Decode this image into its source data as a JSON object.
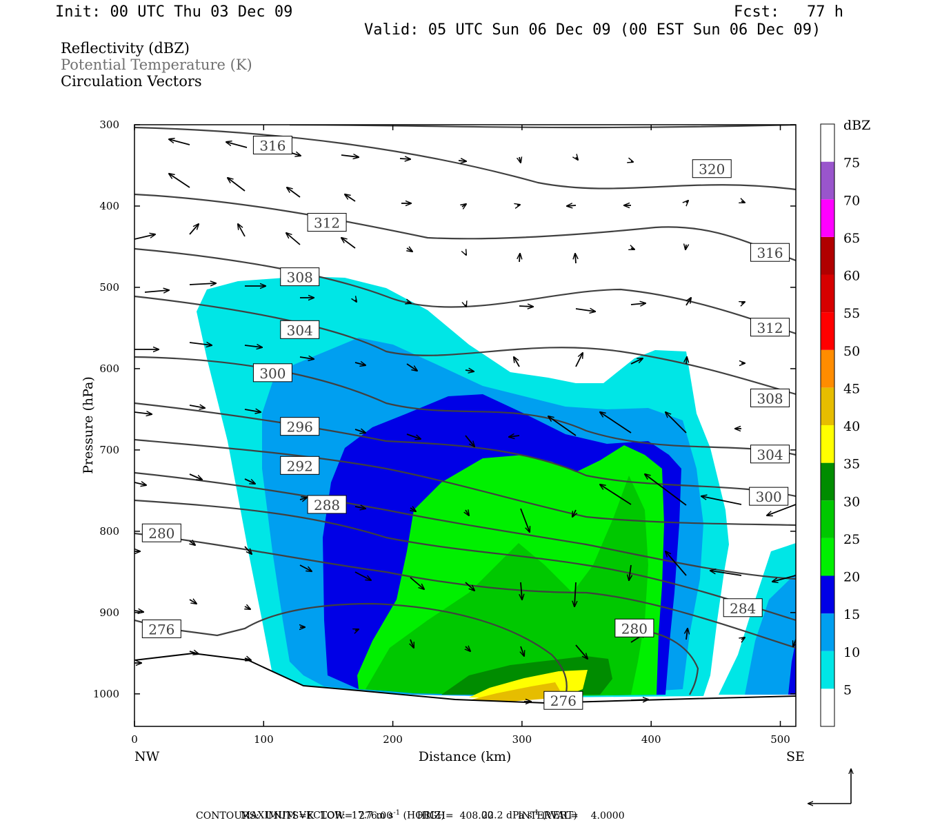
{
  "header": {
    "init": "Init: 00 UTC Thu 03 Dec 09",
    "fcst": "Fcst:   77 h",
    "valid": "Valid: 05 UTC Sun 06 Dec 09 (00 EST Sun 06 Dec 09)"
  },
  "fields": [
    {
      "label": "Reflectivity (dBZ)",
      "color": "#000000"
    },
    {
      "label": "Potential Temperature (K)",
      "color": "#707070"
    },
    {
      "label": "Circulation Vectors",
      "color": "#000000"
    }
  ],
  "footer": {
    "line1_a": "MAXIMUM VECTOR:  17.7 m s",
    "line1_b": "(HORIZ)",
    "line1_c": "22.2 dPa s",
    "line1_d": "(VERT)",
    "sup": "-1",
    "line2": "CONTOURS:  UNITS=K  LOW=  276.00        HIGH=  408.00        INTERVAL=    4.0000"
  },
  "chart_data": {
    "type": "cross-section",
    "xlabel": "Distance (km)",
    "ylabel": "Pressure (hPa)",
    "xlim": [
      0,
      512
    ],
    "ylim": [
      1040,
      300
    ],
    "x_ticks": [
      0,
      100,
      200,
      300,
      400,
      500
    ],
    "y_ticks": [
      300,
      400,
      500,
      600,
      700,
      800,
      900,
      1000
    ],
    "end_labels": {
      "left": "NW",
      "right": "SE"
    },
    "colorbar": {
      "unit": "dBZ",
      "levels": [
        "5",
        "10",
        "15",
        "20",
        "25",
        "30",
        "35",
        "40",
        "45",
        "50",
        "55",
        "60",
        "65",
        "70",
        "75"
      ],
      "colors": [
        "#ffffff",
        "#00e6e6",
        "#009ff0",
        "#0000e6",
        "#00f000",
        "#00c800",
        "#008c00",
        "#ffff00",
        "#e6bd00",
        "#ff8c00",
        "#ff0000",
        "#d60000",
        "#b00000",
        "#ff00ff",
        "#9955cc",
        "#ffffff"
      ]
    },
    "theta_labels": [
      {
        "text": "316",
        "x": 107,
        "p": 325
      },
      {
        "text": "320",
        "x": 447,
        "p": 354
      },
      {
        "text": "312",
        "x": 149,
        "p": 420
      },
      {
        "text": "316",
        "x": 492,
        "p": 457
      },
      {
        "text": "308",
        "x": 128,
        "p": 487
      },
      {
        "text": "312",
        "x": 492,
        "p": 549
      },
      {
        "text": "304",
        "x": 128,
        "p": 552
      },
      {
        "text": "300",
        "x": 107,
        "p": 605
      },
      {
        "text": "308",
        "x": 492,
        "p": 636
      },
      {
        "text": "296",
        "x": 128,
        "p": 671
      },
      {
        "text": "304",
        "x": 492,
        "p": 705
      },
      {
        "text": "292",
        "x": 128,
        "p": 719
      },
      {
        "text": "300",
        "x": 491,
        "p": 757
      },
      {
        "text": "288",
        "x": 149,
        "p": 767
      },
      {
        "text": "280",
        "x": 21,
        "p": 802
      },
      {
        "text": "284",
        "x": 471,
        "p": 894
      },
      {
        "text": "276",
        "x": 21,
        "p": 920
      },
      {
        "text": "280",
        "x": 387,
        "p": 919
      },
      {
        "text": "276",
        "x": 332,
        "p": 1008
      }
    ]
  }
}
